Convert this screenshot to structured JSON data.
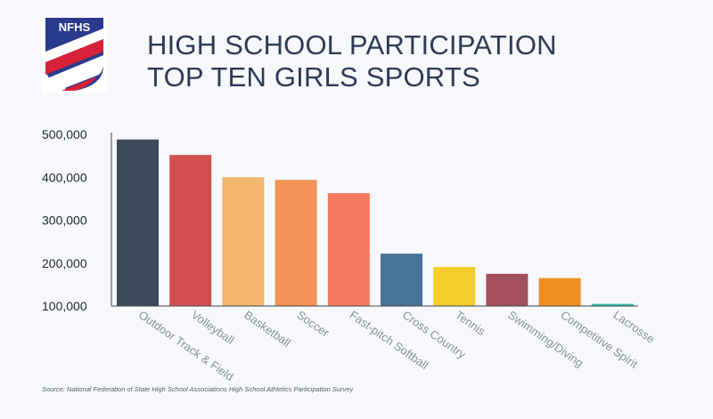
{
  "brand": {
    "logo_text": "NFHS",
    "colors": {
      "navy": "#2a3a8c",
      "red": "#d8223a"
    }
  },
  "title": {
    "line1": "HIGH SCHOOL PARTICIPATION",
    "line2": "TOP TEN GIRLS SPORTS"
  },
  "source": "Source: National Federation of State High School Associations High School Athletics Participation Survey",
  "chart_data": {
    "type": "bar",
    "title": "HIGH SCHOOL PARTICIPATION TOP TEN GIRLS SPORTS",
    "xlabel": "",
    "ylabel": "",
    "ylim": [
      100000,
      500000
    ],
    "yticks": [
      100000,
      200000,
      300000,
      400000,
      500000
    ],
    "ytick_labels": [
      "100,000",
      "200,000",
      "300,000",
      "400,000",
      "500,000"
    ],
    "grid": false,
    "categories": [
      "Outdoor Track & Field",
      "Volleyball",
      "Basketball",
      "Soccer",
      "Fast-pitch Softball",
      "Cross Country",
      "Tennis",
      "Swimming/Diving",
      "Competitive Spirit",
      "Lacrosse"
    ],
    "values": [
      488000,
      452000,
      400000,
      394000,
      363000,
      222000,
      191000,
      175000,
      165000,
      105000
    ],
    "colors": [
      "#3c4a5c",
      "#d35050",
      "#f2b56e",
      "#f29158",
      "#f47a5e",
      "#47739a",
      "#f3cd2b",
      "#a44f5c",
      "#f08e22",
      "#35b8a6"
    ]
  }
}
